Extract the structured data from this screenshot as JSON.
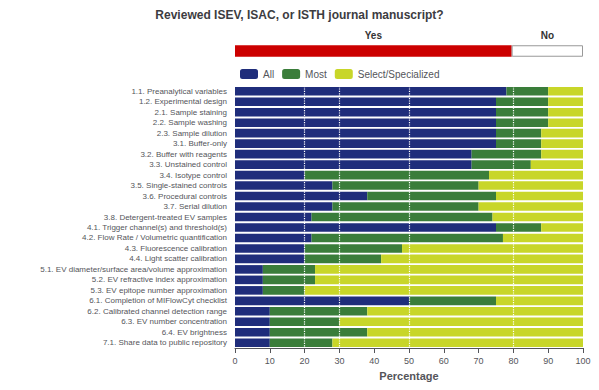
{
  "chart_data": [
    {
      "type": "bar",
      "title": "Reviewed ISEV, ISAC, or ISTH journal manuscript?",
      "orientation": "horizontal",
      "stacked": true,
      "tick_labels": false,
      "xlim": [
        0,
        1
      ],
      "series": [
        {
          "name": "Yes",
          "color": "#cc0000",
          "values": [
            0.795
          ]
        },
        {
          "name": "No",
          "color": "#ffffff",
          "values": [
            0.205
          ]
        }
      ]
    },
    {
      "type": "bar",
      "orientation": "horizontal",
      "stacked": true,
      "categories": [
        "1.1. Preanalytical variables",
        "1.2. Experimental design",
        "2.1. Sample staining",
        "2.2. Sample washing",
        "2.3. Sample dilution",
        "3.1. Buffer-only",
        "3.2. Buffer with reagents",
        "3.3. Unstained control",
        "3.4. Isotype control",
        "3.5. Single-stained controls",
        "3.6. Procedural controls",
        "3.7. Serial dilution",
        "3.8. Detergent-treated EV samples",
        "4.1. Trigger channel(s) and threshold(s)",
        "4.2. Flow Rate / Volumetric quantification",
        "4.3. Fluorescence calibration",
        "4.4. Light scatter calibration",
        "5.1. EV diameter/surface area/volume approximation",
        "5.2. EV refractive index approximation",
        "5.3. EV epitope number approximation",
        "6.1. Completion of MIFlowCyt checklist",
        "6.2. Calibrated channel detection range",
        "6.3. EV number concentration",
        "6.4. EV brightness",
        "7.1. Share data to public repository"
      ],
      "xlabel": "Percentage",
      "xlim": [
        0,
        100
      ],
      "xticks": [
        0,
        10,
        20,
        30,
        40,
        50,
        60,
        70,
        80,
        90,
        100
      ],
      "grid": false,
      "legend": "top",
      "vlines": [
        20,
        30,
        50,
        80
      ],
      "series": [
        {
          "name": "All",
          "color": "#1f2d7b",
          "values": [
            78,
            75,
            75,
            75,
            75,
            75,
            68,
            68,
            20,
            28,
            38,
            28,
            22,
            75,
            22,
            20,
            20,
            8,
            8,
            8,
            50,
            10,
            10,
            10,
            10
          ]
        },
        {
          "name": "Most",
          "color": "#3a7d3a",
          "values": [
            12,
            15,
            15,
            15,
            13,
            13,
            20,
            17,
            53,
            42,
            37,
            42,
            52,
            13,
            55,
            28,
            22,
            15,
            15,
            12,
            25,
            28,
            20,
            28,
            18
          ]
        },
        {
          "name": "Select/Specialized",
          "color": "#c8d629",
          "values": [
            10,
            10,
            10,
            10,
            12,
            12,
            12,
            15,
            27,
            30,
            25,
            30,
            26,
            12,
            23,
            52,
            58,
            77,
            77,
            80,
            25,
            62,
            70,
            62,
            72
          ]
        }
      ]
    }
  ]
}
